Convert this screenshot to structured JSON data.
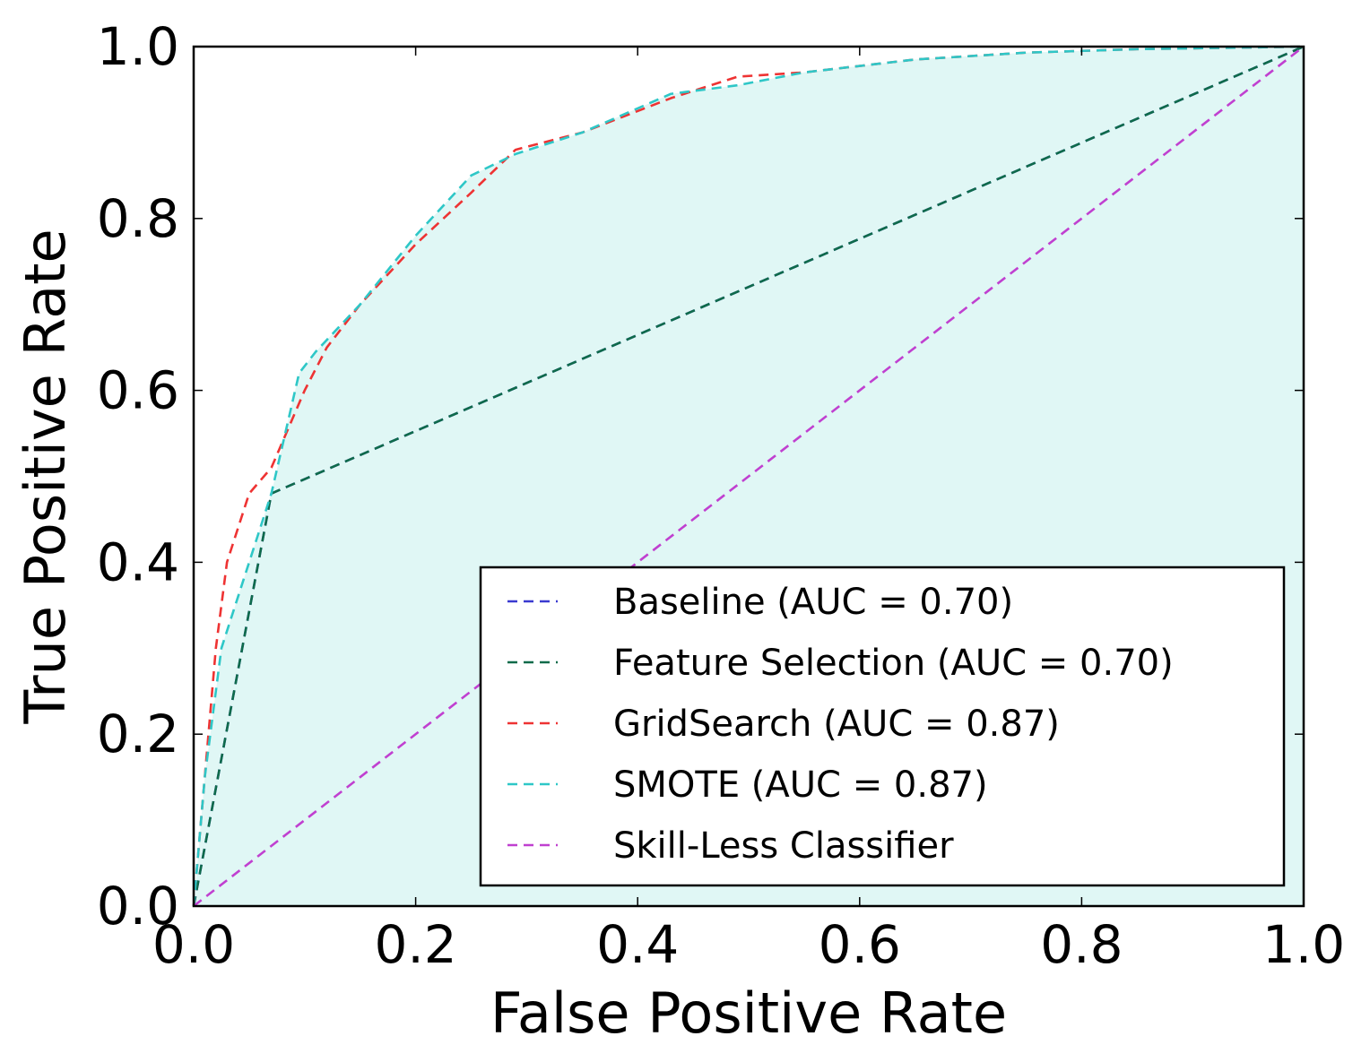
{
  "chart_data": {
    "type": "line",
    "xlabel": "False Positive Rate",
    "ylabel": "True Positive Rate",
    "xlim": [
      0.0,
      1.0
    ],
    "ylim": [
      0.0,
      1.0
    ],
    "xticks": [
      "0.0",
      "0.2",
      "0.4",
      "0.6",
      "0.8",
      "1.0"
    ],
    "yticks": [
      "0.0",
      "0.2",
      "0.4",
      "0.6",
      "0.8",
      "1.0"
    ],
    "grid": false,
    "legend_position": "lower-right",
    "fill_under_series": "SMOTE (AUC = 0.87)",
    "fill_color": "#e0f7f5",
    "series": [
      {
        "name": "Baseline (AUC = 0.70)",
        "color": "#3a3ad0",
        "x": [
          0.0,
          0.07,
          1.0
        ],
        "y": [
          0.0,
          0.48,
          1.0
        ]
      },
      {
        "name": "Feature Selection (AUC = 0.70)",
        "color": "#0f6b4a",
        "x": [
          0.0,
          0.07,
          1.0
        ],
        "y": [
          0.0,
          0.48,
          1.0
        ]
      },
      {
        "name": "GridSearch (AUC = 0.87)",
        "color": "#ee3333",
        "x": [
          0.0,
          0.01,
          0.02,
          0.03,
          0.05,
          0.07,
          0.1,
          0.12,
          0.15,
          0.2,
          0.25,
          0.29,
          0.35,
          0.43,
          0.49,
          0.55,
          0.65,
          0.75,
          0.85,
          1.0
        ],
        "y": [
          0.0,
          0.15,
          0.3,
          0.4,
          0.48,
          0.51,
          0.6,
          0.65,
          0.7,
          0.77,
          0.83,
          0.88,
          0.9,
          0.94,
          0.965,
          0.97,
          0.985,
          0.993,
          0.997,
          1.0
        ]
      },
      {
        "name": "SMOTE (AUC = 0.87)",
        "color": "#2ec7c7",
        "x": [
          0.0,
          0.01,
          0.025,
          0.045,
          0.07,
          0.095,
          0.11,
          0.15,
          0.2,
          0.25,
          0.29,
          0.35,
          0.43,
          0.49,
          0.55,
          0.65,
          0.75,
          0.85,
          1.0
        ],
        "y": [
          0.0,
          0.15,
          0.3,
          0.38,
          0.48,
          0.62,
          0.645,
          0.7,
          0.78,
          0.85,
          0.875,
          0.9,
          0.945,
          0.955,
          0.97,
          0.985,
          0.993,
          0.997,
          1.0
        ]
      },
      {
        "name": "Skill-Less Classifier",
        "color": "#c040d0",
        "x": [
          0.0,
          1.0
        ],
        "y": [
          0.0,
          1.0
        ]
      }
    ]
  }
}
